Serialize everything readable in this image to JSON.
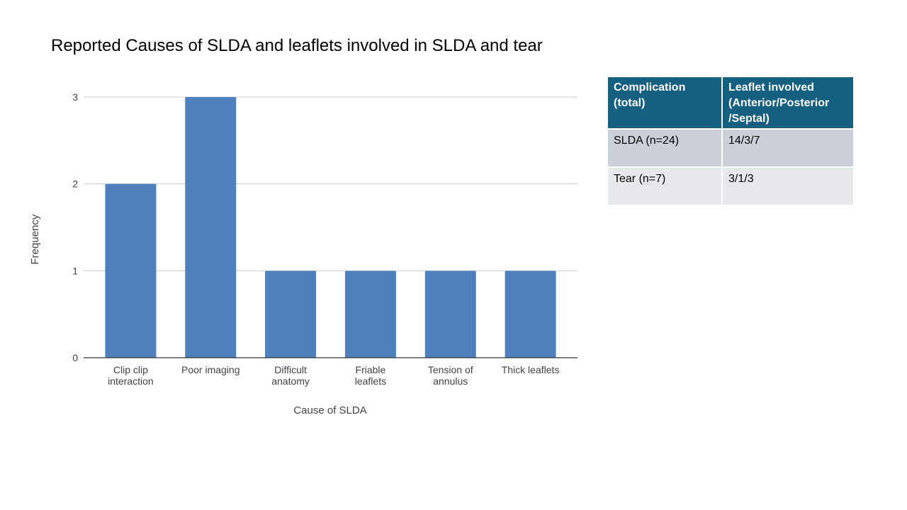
{
  "slide": {
    "title": "Reported Causes of SLDA and leaflets involved in SLDA and tear"
  },
  "chart_data": {
    "type": "bar",
    "title": "Reported Causes of SLDA and leaflets involved in SLDA and tear",
    "xlabel": "Cause of SLDA",
    "ylabel": "Frequency",
    "categories": [
      [
        "Clip clip",
        "interaction"
      ],
      [
        "Poor imaging"
      ],
      [
        "Difficult",
        "anatomy"
      ],
      [
        "Friable",
        "leaflets"
      ],
      [
        "Tension of",
        "annulus"
      ],
      [
        "Thick leaflets"
      ]
    ],
    "values": [
      2,
      3,
      1,
      1,
      1,
      1
    ],
    "ylim": [
      0,
      3
    ],
    "yticks": [
      0,
      1,
      2,
      3
    ],
    "grid": true,
    "bar_color": "#4e80bd",
    "grid_color": "#cccccc"
  },
  "table": {
    "headers": [
      [
        "Complication",
        "(total)"
      ],
      [
        "Leaflet involved",
        "(Anterior/Posterior",
        "/Septal)"
      ]
    ],
    "rows": [
      [
        "SLDA (n=24)",
        "14/3/7"
      ],
      [
        "Tear (n=7)",
        "3/1/3"
      ]
    ],
    "header_color": "#155f80"
  }
}
